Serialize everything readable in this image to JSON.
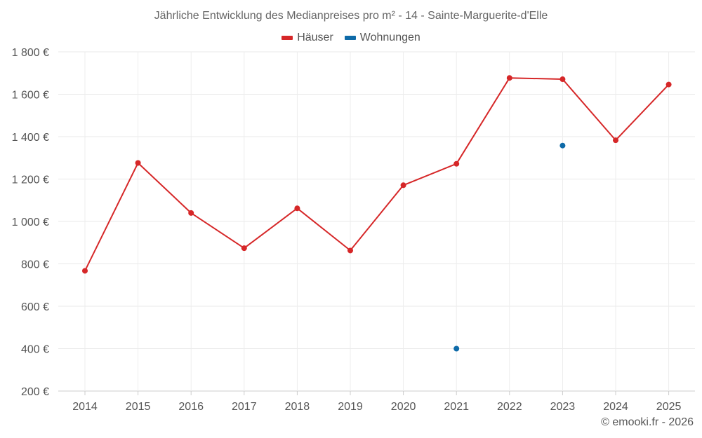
{
  "chart_data": {
    "type": "line",
    "title": "Jährliche Entwicklung des Medianpreises pro m² - 14 - Sainte-Marguerite-d'Elle",
    "xlabel": "",
    "ylabel": "",
    "categories": [
      "2014",
      "2015",
      "2016",
      "2017",
      "2018",
      "2019",
      "2020",
      "2021",
      "2022",
      "2023",
      "2024",
      "2025"
    ],
    "ylim": [
      200,
      1800
    ],
    "yticks": [
      {
        "value": 200,
        "label": "200 €"
      },
      {
        "value": 400,
        "label": "400 €"
      },
      {
        "value": 600,
        "label": "600 €"
      },
      {
        "value": 800,
        "label": "800 €"
      },
      {
        "value": 1000,
        "label": "1 000 €"
      },
      {
        "value": 1200,
        "label": "1 200 €"
      },
      {
        "value": 1400,
        "label": "1 400 €"
      },
      {
        "value": 1600,
        "label": "1 600 €"
      },
      {
        "value": 1800,
        "label": "1 800 €"
      }
    ],
    "legend_position": "top-center",
    "grid": true,
    "series": [
      {
        "name": "Häuser",
        "color": "#d62728",
        "connect": true,
        "values": [
          767,
          1276,
          1040,
          874,
          1062,
          863,
          1171,
          1272,
          1677,
          1671,
          1383,
          1646
        ]
      },
      {
        "name": "Wohnungen",
        "color": "#0e6aa8",
        "connect": false,
        "values": [
          null,
          null,
          null,
          null,
          null,
          null,
          null,
          400,
          null,
          1358,
          null,
          null
        ]
      }
    ]
  },
  "credit": "© emooki.fr - 2026"
}
